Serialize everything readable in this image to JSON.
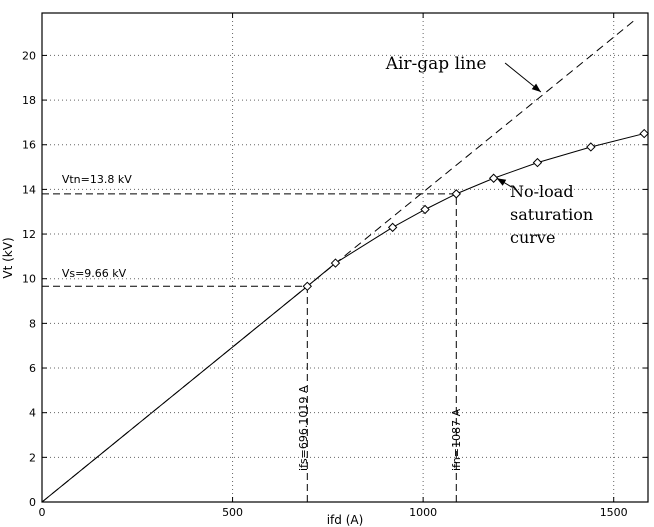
{
  "figure": {
    "background": "#ffffff",
    "line_color": "#000000",
    "grid_color": "#666666"
  },
  "chart_data": {
    "type": "line",
    "title": "",
    "xlabel": "ifd (A)",
    "ylabel": "Vt (kV)",
    "xlim": [
      0,
      1590
    ],
    "ylim": [
      0,
      21.9
    ],
    "x_ticks": [
      0,
      500,
      1000,
      1500
    ],
    "y_ticks": [
      0,
      2,
      4,
      6,
      8,
      10,
      12,
      14,
      16,
      18,
      20
    ],
    "grid": "dotted",
    "legend": "none",
    "series": [
      {
        "name": "Air-gap line",
        "line_style": "dashed",
        "marker": "none",
        "x": [
          0,
          1560
        ],
        "y": [
          0,
          21.65
        ]
      },
      {
        "name": "No-load saturation curve",
        "line_style": "solid",
        "marker": "diamond",
        "marker_from_index": 1,
        "x": [
          0,
          696.1,
          770,
          920,
          1005,
          1087,
          1185,
          1300,
          1440,
          1580
        ],
        "y": [
          0,
          9.66,
          10.7,
          12.3,
          13.1,
          13.8,
          14.5,
          15.2,
          15.9,
          16.5
        ]
      }
    ],
    "reference_lines": [
      {
        "id": "vtn-line",
        "type": "h",
        "value": 13.8,
        "from": 0,
        "to": 1087
      },
      {
        "id": "vs-line",
        "type": "h",
        "value": 9.66,
        "from": 0,
        "to": 696.1
      },
      {
        "id": "ifs-line",
        "type": "v",
        "value": 696.1,
        "from": 0,
        "to": 9.66
      },
      {
        "id": "ifn-line",
        "type": "v",
        "value": 1087,
        "from": 0,
        "to": 13.8
      }
    ],
    "annotations": [
      {
        "id": "air-gap-line-label",
        "text": "Air-gap line",
        "x": 1034,
        "y": 20.15,
        "rotate": 0,
        "size": 17,
        "font": "serif",
        "align": "center"
      },
      {
        "id": "no-load-curve-label",
        "text": "No-load\nsaturation\ncurve",
        "x": 1228,
        "y": 14.42,
        "rotate": 0,
        "size": 16,
        "font": "serif",
        "align": "left"
      },
      {
        "id": "vtn-label",
        "text": "Vtn=13.8 kV",
        "x": 52,
        "y": 14.78,
        "rotate": 0,
        "size": 11,
        "font": "sans",
        "align": "left"
      },
      {
        "id": "vs-label",
        "text": "Vs=9.66 kV",
        "x": 52,
        "y": 10.57,
        "rotate": 0,
        "size": 11,
        "font": "sans",
        "align": "left"
      },
      {
        "id": "ifs-label",
        "text": "ifs=696.1019 A",
        "x": 666,
        "y": 1.4,
        "rotate": -90,
        "size": 11,
        "font": "sans",
        "align": "left"
      },
      {
        "id": "ifn-label",
        "text": "ifn=1087 A",
        "x": 1068,
        "y": 1.4,
        "rotate": -90,
        "size": 11,
        "font": "sans",
        "align": "left"
      }
    ],
    "arrows": [
      {
        "id": "air-gap-arrow",
        "x1": 1215,
        "y1": 19.66,
        "x2": 1309,
        "y2": 18.36
      },
      {
        "id": "no-load-arrow",
        "x1": 1233,
        "y1": 14.1,
        "x2": 1193,
        "y2": 14.5
      }
    ]
  }
}
